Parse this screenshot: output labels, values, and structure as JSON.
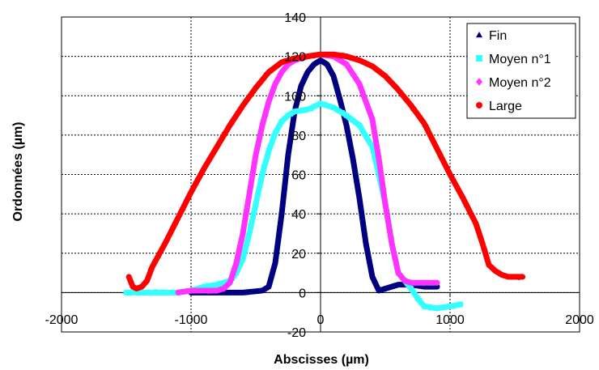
{
  "chart_data": {
    "type": "scatter",
    "xlabel": "Abscisses (µm)",
    "ylabel": "Ordonnées (µm)",
    "xlim": [
      -2000,
      2000
    ],
    "ylim": [
      -20,
      140
    ],
    "xticks": [
      "-2000",
      "-1000",
      "0",
      "1000",
      "2000"
    ],
    "yticks": [
      "-20",
      "0",
      "20",
      "40",
      "60",
      "80",
      "100",
      "120",
      "140"
    ],
    "grid": true,
    "legend_position": "top-right",
    "series": [
      {
        "name": "Fin",
        "color": "#000080",
        "marker": "triangle",
        "points": [
          [
            -1000,
            0
          ],
          [
            -800,
            0
          ],
          [
            -600,
            0
          ],
          [
            -450,
            1
          ],
          [
            -400,
            3
          ],
          [
            -350,
            15
          ],
          [
            -300,
            40
          ],
          [
            -250,
            70
          ],
          [
            -200,
            92
          ],
          [
            -150,
            105
          ],
          [
            -100,
            112
          ],
          [
            -50,
            116
          ],
          [
            0,
            118
          ],
          [
            50,
            116
          ],
          [
            100,
            110
          ],
          [
            150,
            98
          ],
          [
            200,
            85
          ],
          [
            250,
            68
          ],
          [
            300,
            48
          ],
          [
            350,
            25
          ],
          [
            400,
            8
          ],
          [
            450,
            1
          ],
          [
            500,
            2
          ],
          [
            600,
            4
          ],
          [
            700,
            4
          ],
          [
            800,
            3
          ],
          [
            900,
            3
          ]
        ]
      },
      {
        "name": "Moyen n°1",
        "color": "#33FFFF",
        "marker": "square",
        "points": [
          [
            -1500,
            0
          ],
          [
            -1300,
            0
          ],
          [
            -1100,
            0
          ],
          [
            -1000,
            1
          ],
          [
            -900,
            3
          ],
          [
            -800,
            4
          ],
          [
            -700,
            6
          ],
          [
            -650,
            10
          ],
          [
            -600,
            17
          ],
          [
            -550,
            30
          ],
          [
            -500,
            45
          ],
          [
            -450,
            60
          ],
          [
            -400,
            72
          ],
          [
            -350,
            81
          ],
          [
            -300,
            87
          ],
          [
            -250,
            90
          ],
          [
            -200,
            92
          ],
          [
            -100,
            93
          ],
          [
            0,
            96
          ],
          [
            100,
            94
          ],
          [
            200,
            90
          ],
          [
            300,
            85
          ],
          [
            400,
            74
          ],
          [
            450,
            60
          ],
          [
            500,
            45
          ],
          [
            550,
            25
          ],
          [
            600,
            10
          ],
          [
            700,
            2
          ],
          [
            750,
            -3
          ],
          [
            800,
            -7
          ],
          [
            900,
            -8
          ],
          [
            1000,
            -7
          ],
          [
            1080,
            -6
          ]
        ]
      },
      {
        "name": "Moyen n°2",
        "color": "#FF33FF",
        "marker": "diamond",
        "points": [
          [
            -1100,
            0
          ],
          [
            -1000,
            1
          ],
          [
            -900,
            1
          ],
          [
            -800,
            1
          ],
          [
            -750,
            2
          ],
          [
            -700,
            5
          ],
          [
            -650,
            15
          ],
          [
            -600,
            30
          ],
          [
            -550,
            50
          ],
          [
            -500,
            70
          ],
          [
            -450,
            85
          ],
          [
            -400,
            97
          ],
          [
            -350,
            106
          ],
          [
            -300,
            112
          ],
          [
            -250,
            116
          ],
          [
            -200,
            118
          ],
          [
            -100,
            120
          ],
          [
            0,
            121
          ],
          [
            100,
            120
          ],
          [
            200,
            116
          ],
          [
            300,
            106
          ],
          [
            400,
            88
          ],
          [
            450,
            68
          ],
          [
            500,
            45
          ],
          [
            550,
            25
          ],
          [
            600,
            10
          ],
          [
            650,
            6
          ],
          [
            700,
            5
          ],
          [
            800,
            5
          ],
          [
            900,
            5
          ]
        ]
      },
      {
        "name": "Large",
        "color": "#FF0000",
        "marker": "circle",
        "points": [
          [
            -1480,
            8
          ],
          [
            -1450,
            3
          ],
          [
            -1420,
            2
          ],
          [
            -1380,
            3
          ],
          [
            -1340,
            6
          ],
          [
            -1300,
            13
          ],
          [
            -1200,
            25
          ],
          [
            -1100,
            38
          ],
          [
            -1000,
            51
          ],
          [
            -900,
            63
          ],
          [
            -800,
            74
          ],
          [
            -700,
            85
          ],
          [
            -600,
            95
          ],
          [
            -500,
            104
          ],
          [
            -400,
            112
          ],
          [
            -300,
            117
          ],
          [
            -200,
            119
          ],
          [
            -100,
            120
          ],
          [
            0,
            121
          ],
          [
            100,
            121
          ],
          [
            200,
            120
          ],
          [
            300,
            118
          ],
          [
            400,
            115
          ],
          [
            500,
            110
          ],
          [
            600,
            103
          ],
          [
            700,
            95
          ],
          [
            800,
            86
          ],
          [
            900,
            73
          ],
          [
            1000,
            60
          ],
          [
            1100,
            48
          ],
          [
            1200,
            35
          ],
          [
            1250,
            25
          ],
          [
            1300,
            14
          ],
          [
            1350,
            11
          ],
          [
            1400,
            9
          ],
          [
            1450,
            8
          ],
          [
            1500,
            8
          ],
          [
            1560,
            8
          ]
        ]
      }
    ]
  }
}
